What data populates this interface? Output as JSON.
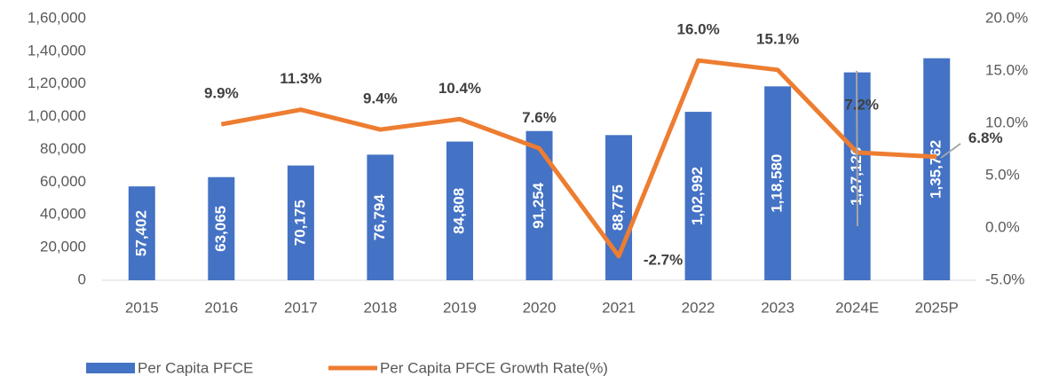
{
  "chart_data": {
    "type": "bar",
    "categories": [
      "2015",
      "2016",
      "2017",
      "2018",
      "2019",
      "2020",
      "2021",
      "2022",
      "2023",
      "2024E",
      "2025P"
    ],
    "series": [
      {
        "name": "Per Capita PFCE",
        "type": "bar",
        "color": "#4472c4",
        "values": [
          57402,
          63065,
          70175,
          76794,
          84808,
          91254,
          88775,
          102992,
          118580,
          127126,
          135762
        ],
        "value_labels": [
          "57,402",
          "63,065",
          "70,175",
          "76,794",
          "84,808",
          "91,254",
          "88,775",
          "1,02,992",
          "1,18,580",
          "1,27,126",
          "1,35,762"
        ]
      },
      {
        "name": "Per Capita PFCE Growth Rate(%)",
        "type": "line",
        "axis": "y2",
        "color": "#ed7d31",
        "values": [
          null,
          9.9,
          11.3,
          9.4,
          10.4,
          7.6,
          -2.7,
          16.0,
          15.1,
          7.2,
          6.8
        ],
        "value_labels": [
          null,
          "9.9%",
          "11.3%",
          "9.4%",
          "10.4%",
          "7.6%",
          "-2.7%",
          "16.0%",
          "15.1%",
          "7.2%",
          "6.8%"
        ]
      }
    ],
    "ylim": [
      0,
      160000
    ],
    "yticks": [
      0,
      {
        "value": 20000,
        "label": "20,000"
      },
      {
        "value": 40000,
        "label": "40,000"
      },
      {
        "value": 60000,
        "label": "60,000"
      },
      {
        "value": 80000,
        "label": "80,000"
      },
      {
        "value": 100000,
        "label": "1,00,000"
      },
      {
        "value": 120000,
        "label": "1,20,000"
      },
      {
        "value": 140000,
        "label": "1,40,000"
      },
      {
        "value": 160000,
        "label": "1,60,000"
      }
    ],
    "y2lim": [
      -5,
      20
    ],
    "y2ticks": [
      {
        "value": -5,
        "label": "-5.0%"
      },
      {
        "value": 0,
        "label": "0.0%"
      },
      {
        "value": 5,
        "label": "5.0%"
      },
      {
        "value": 10,
        "label": "10.0%"
      },
      {
        "value": 15,
        "label": "15.0%"
      },
      {
        "value": 20,
        "label": "20.0%"
      }
    ],
    "legend": "bottom"
  }
}
